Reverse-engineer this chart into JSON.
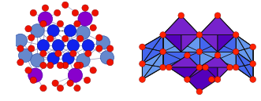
{
  "bg_color": "#ffffff",
  "purple": "#8800cc",
  "dark_blue": "#1122ee",
  "light_blue": "#6688cc",
  "red": "#ee1100",
  "bond_color": "#9999bb",
  "black": "#111111",
  "poly_blue_dark": "#2244dd",
  "poly_blue_mid": "#4466ee",
  "poly_blue_light": "#6699ee",
  "poly_purple_dark": "#5500bb",
  "poly_purple_light": "#7722cc",
  "poly_red": "#ff2200",
  "poly_edge": "#111111"
}
